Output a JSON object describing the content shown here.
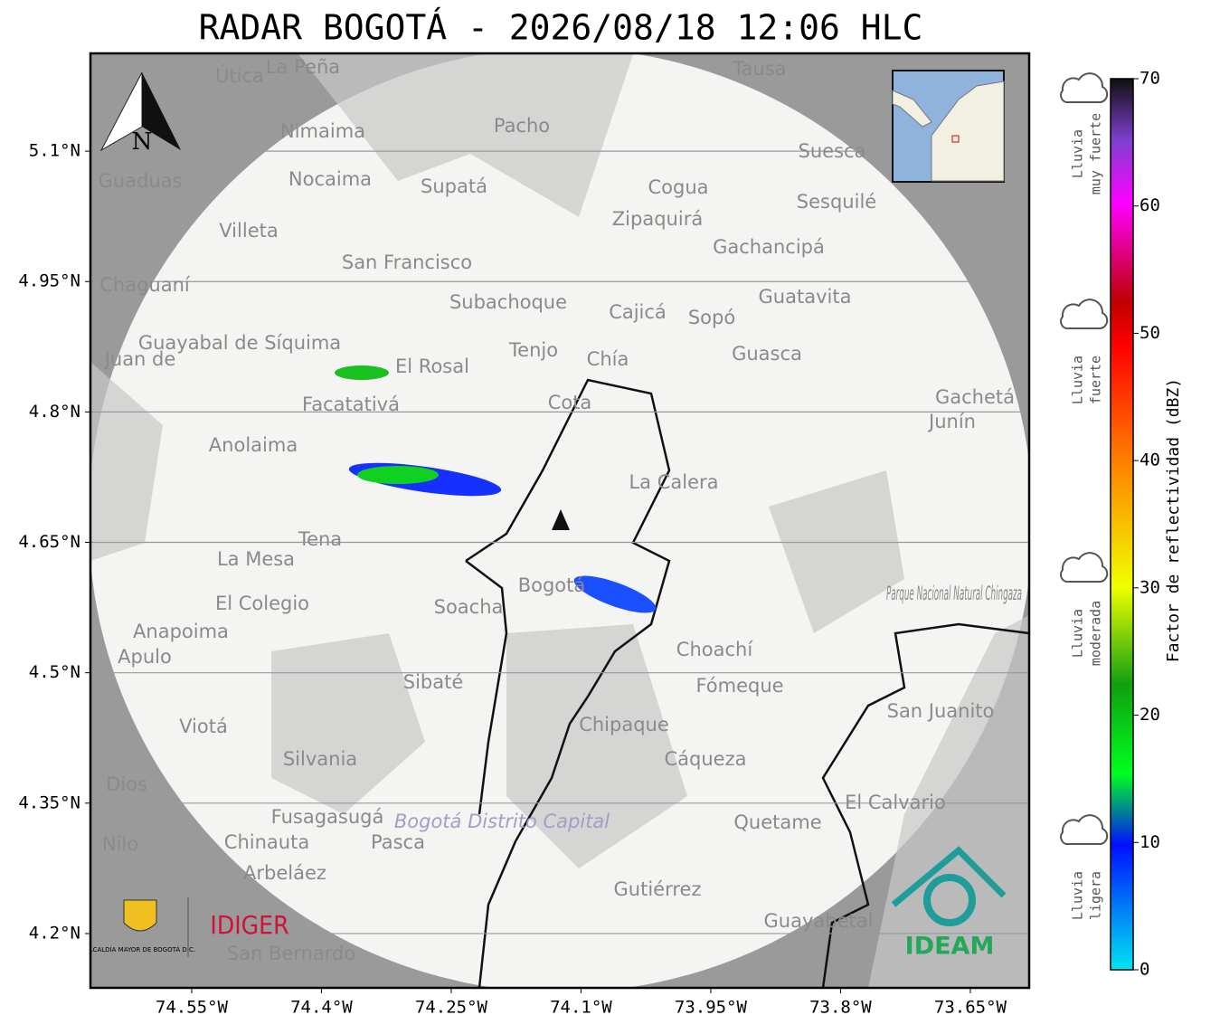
{
  "header": {
    "title": "RADAR BOGOTÁ - 2026/08/18 12:06 HLC"
  },
  "map": {
    "xlim": [
      -74.667,
      -73.582
    ],
    "ylim": [
      4.1375,
      5.2125
    ],
    "xticks": [
      {
        "value": -74.55,
        "label": "74.55°W"
      },
      {
        "value": -74.4,
        "label": "74.4°W"
      },
      {
        "value": -74.25,
        "label": "74.25°W"
      },
      {
        "value": -74.1,
        "label": "74.1°W"
      },
      {
        "value": -73.95,
        "label": "73.95°W"
      },
      {
        "value": -73.8,
        "label": "73.8°W"
      },
      {
        "value": -73.65,
        "label": "73.65°W"
      }
    ],
    "yticks": [
      {
        "value": 5.1,
        "label": "5.1°N"
      },
      {
        "value": 4.95,
        "label": "4.95°N"
      },
      {
        "value": 4.8,
        "label": "4.8°N"
      },
      {
        "value": 4.65,
        "label": "4.65°N"
      },
      {
        "value": 4.5,
        "label": "4.5°N"
      },
      {
        "value": 4.35,
        "label": "4.35°N"
      },
      {
        "value": 4.2,
        "label": "4.2°N"
      }
    ],
    "grid": true,
    "north": "N",
    "places": [
      "La Peña",
      "Útica",
      "Tausa",
      "Pacho",
      "Nimaima",
      "Nocaima",
      "Supatá",
      "Guaduas",
      "Suesca",
      "Cogua",
      "Sesquilé",
      "Zipaquirá",
      "Villeta",
      "Gachancipá",
      "San Francisco",
      "Chaguaní",
      "Guatavita",
      "Subachoque",
      "Cajicá",
      "Sopó",
      "Guayabal de Síquima",
      "Tenjo",
      "Guasca",
      "Chía",
      "Juan de",
      "El Rosal",
      "Facatativá",
      "Cota",
      "Gachetá",
      "Junín",
      "Anolaima",
      "La Calera",
      "Tena",
      "La Mesa",
      "Bogotá",
      "El Colegio",
      "Soacha",
      "Anapoima",
      "Apulo",
      "Choachí",
      "Sibaté",
      "Fómeque",
      "San Juanito",
      "Viotá",
      "Chipaque",
      "Silvania",
      "Cáqueza",
      "Dios",
      "El Calvario",
      "Fusagasugá",
      "Quetame",
      "Nilo",
      "Chinauta",
      "Pasca",
      "Arbeláez",
      "Gutiérrez",
      "Guayabetal",
      "San Bernardo"
    ],
    "park": "Parque Nacional Natural Chingaza",
    "district": "Bogotá Distrito Capital"
  },
  "colorbar": {
    "lim": [
      0,
      70
    ],
    "ticks": [
      0,
      10,
      20,
      30,
      40,
      50,
      60,
      70
    ],
    "label": "Factor de reflectividad (dBZ)",
    "levels": [
      [
        "Lluvia",
        "muy fuerte"
      ],
      [
        "Lluvia",
        "fuerte"
      ],
      [
        "Lluvia",
        "moderada"
      ],
      [
        "Lluvia",
        "ligera"
      ]
    ]
  },
  "logos": {
    "alcaldia": "ALCALDÍA MAYOR DE BOGOTÁ D.C.",
    "idiger": "IDIGER",
    "ideam": "IDEAM"
  }
}
